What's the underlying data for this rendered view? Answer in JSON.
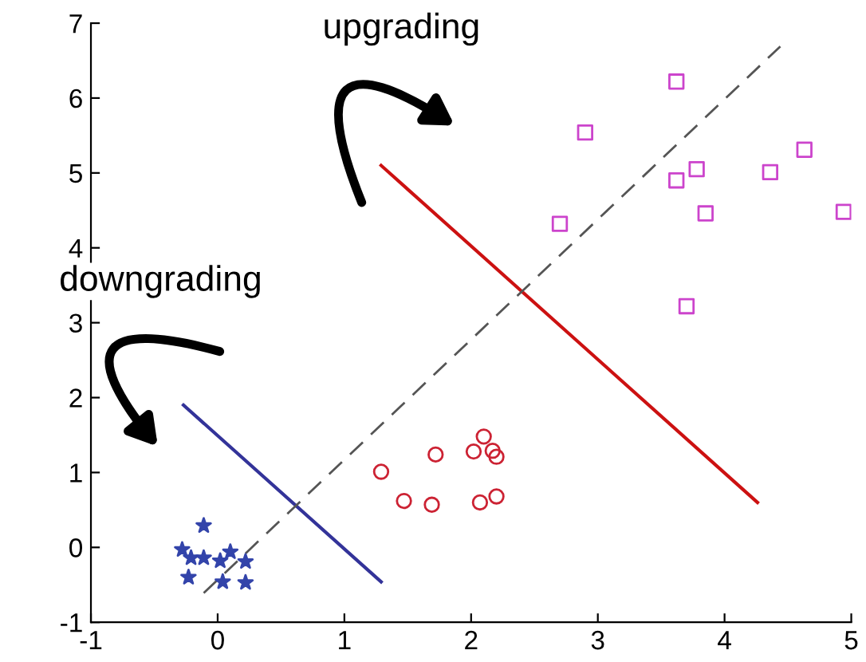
{
  "chart_data": {
    "type": "scatter",
    "xlim": [
      -1,
      5
    ],
    "ylim": [
      -1,
      7
    ],
    "xticks": [
      -1,
      0,
      1,
      2,
      3,
      4,
      5
    ],
    "yticks": [
      -1,
      0,
      1,
      2,
      3,
      4,
      5,
      6,
      7
    ],
    "grid": false,
    "legend": false,
    "annotations": [
      "upgrading",
      "downgrading"
    ],
    "series": [
      {
        "marker": "square",
        "color": "#cc44cc",
        "x": [
          3.62,
          2.9,
          2.7,
          3.62,
          3.78,
          3.85,
          4.36,
          4.63,
          4.94,
          3.7
        ],
        "values": [
          6.22,
          5.54,
          4.32,
          4.9,
          5.05,
          4.46,
          5.01,
          5.31,
          4.48,
          3.22
        ]
      },
      {
        "marker": "circle",
        "color": "#cc2233",
        "x": [
          1.29,
          1.47,
          1.69,
          1.72,
          2.02,
          2.1,
          2.17,
          2.2,
          2.07,
          2.2
        ],
        "values": [
          1.01,
          0.62,
          0.57,
          1.24,
          1.28,
          1.48,
          1.29,
          1.21,
          0.6,
          0.68
        ]
      },
      {
        "marker": "star",
        "color": "#3344aa",
        "x": [
          -0.11,
          -0.28,
          -0.21,
          -0.11,
          0.02,
          0.1,
          0.22,
          -0.23,
          0.04,
          0.22
        ],
        "values": [
          0.29,
          -0.03,
          -0.14,
          -0.14,
          -0.18,
          -0.06,
          -0.19,
          -0.4,
          -0.46,
          -0.47
        ]
      },
      {
        "type": "line",
        "line_style": "solid",
        "color": "#333399",
        "x": [
          -0.27,
          1.29
        ],
        "values": [
          1.9,
          -0.46
        ]
      },
      {
        "type": "line",
        "line_style": "solid",
        "color": "#cc1111",
        "x": [
          1.29,
          4.26
        ],
        "values": [
          5.1,
          0.6
        ]
      },
      {
        "type": "line",
        "line_style": "dashed",
        "color": "#555555",
        "x": [
          -0.11,
          4.44
        ],
        "values": [
          -0.61,
          6.69
        ]
      }
    ]
  }
}
